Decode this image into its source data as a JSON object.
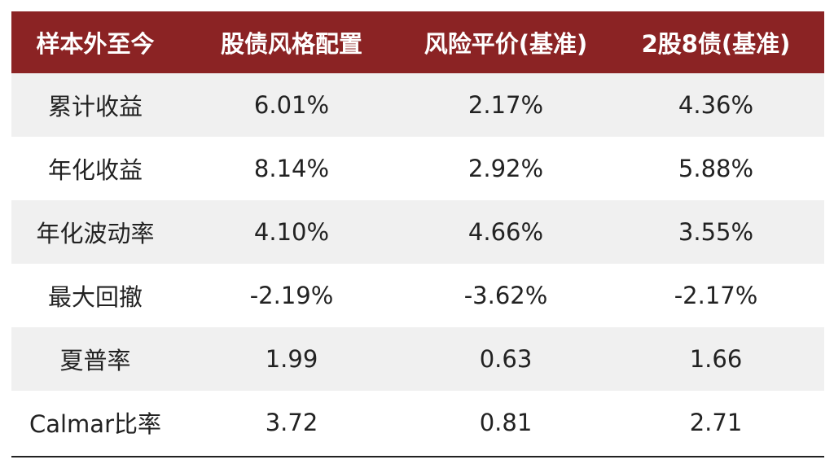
{
  "table": {
    "headers": [
      "样本外至今",
      "股债风格配置",
      "风险平价(基准)",
      "2股8债(基准)"
    ],
    "rows": [
      {
        "label": "累计收益",
        "values": [
          "6.01%",
          "2.17%",
          "4.36%"
        ]
      },
      {
        "label": "年化收益",
        "values": [
          "8.14%",
          "2.92%",
          "5.88%"
        ]
      },
      {
        "label": "年化波动率",
        "values": [
          "4.10%",
          "4.66%",
          "3.55%"
        ]
      },
      {
        "label": "最大回撤",
        "values": [
          "-2.19%",
          "-3.62%",
          "-2.17%"
        ]
      },
      {
        "label": "夏普率",
        "values": [
          "1.99",
          "0.63",
          "1.66"
        ]
      },
      {
        "label": "Calmar比率",
        "values": [
          "3.72",
          "0.81",
          "2.71"
        ]
      }
    ]
  },
  "colors": {
    "header_bg": "#8b2324",
    "header_text": "#ffffff",
    "row_shade": "#f0f0f0",
    "text": "#222222"
  }
}
